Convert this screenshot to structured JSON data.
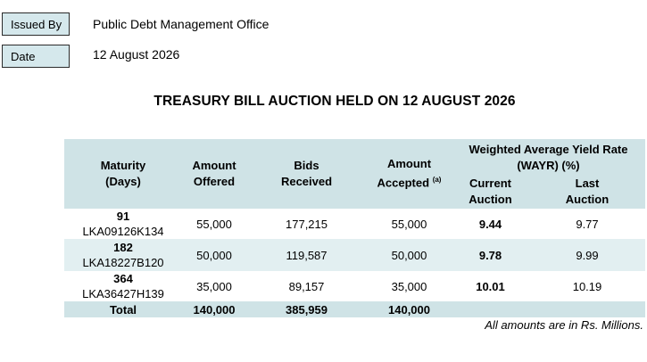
{
  "meta": {
    "issued_by_label": "Issued By",
    "issued_by_value": "Public Debt Management Office",
    "date_label": "Date",
    "date_value": "12 August 2026"
  },
  "title": "TREASURY BILL AUCTION HELD ON 12 AUGUST 2026",
  "table": {
    "headers": {
      "maturity": "Maturity",
      "maturity_sub": "(Days)",
      "offered": "Amount",
      "offered_sub": "Offered",
      "bids": "Bids",
      "bids_sub": "Received",
      "accepted": "Amount",
      "accepted_sub": "Accepted",
      "accepted_note": "(a)",
      "wayr": "Weighted Average Yield Rate",
      "wayr_sub": "(WAYR) (%)",
      "current": "Current",
      "current_sub": "Auction",
      "last": "Last",
      "last_sub": "Auction"
    },
    "rows": [
      {
        "days": "91",
        "isin": "LKA09126K134",
        "offered": "55,000",
        "bids": "177,215",
        "accepted": "55,000",
        "current": "9.44",
        "last": "9.77"
      },
      {
        "days": "182",
        "isin": "LKA18227B120",
        "offered": "50,000",
        "bids": "119,587",
        "accepted": "50,000",
        "current": "9.78",
        "last": "9.99"
      },
      {
        "days": "364",
        "isin": "LKA36427H139",
        "offered": "35,000",
        "bids": "89,157",
        "accepted": "35,000",
        "current": "10.01",
        "last": "10.19"
      }
    ],
    "total": {
      "label": "Total",
      "offered": "140,000",
      "bids": "385,959",
      "accepted": "140,000"
    }
  },
  "note": "All amounts are in Rs. Millions."
}
